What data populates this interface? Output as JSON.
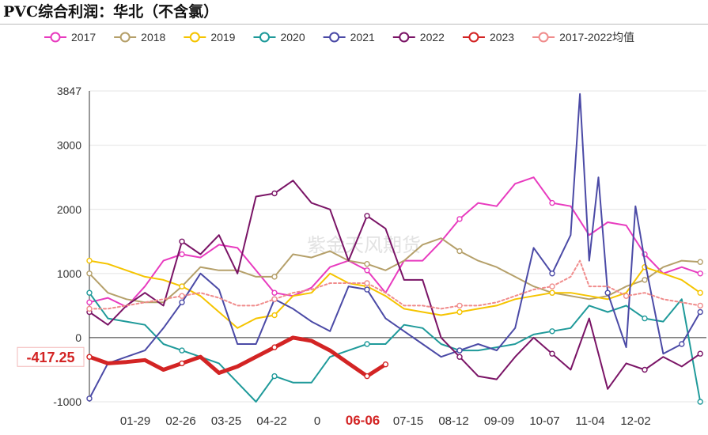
{
  "title": "PVC综合利润：华北（不含氯）",
  "watermark": "紫金天风期货",
  "chart_data": {
    "type": "line",
    "title": "PVC综合利润：华北（不含氯）",
    "x_ticks": [
      "01-29",
      "02-26",
      "03-25",
      "04-22",
      "0",
      "06-06",
      "07-15",
      "08-12",
      "09-09",
      "10-07",
      "11-04",
      "12-02"
    ],
    "x_highlight_tick": "06-06",
    "y_ticks": [
      -1000,
      0,
      1000,
      2000,
      3000,
      3847
    ],
    "ylim": [
      -1000,
      3847
    ],
    "x_range": [
      0,
      100
    ],
    "end_label": "-417.25",
    "series": [
      {
        "name": "2017",
        "color": "#e83bbf",
        "x": [
          0,
          3,
          6,
          9,
          12,
          15,
          18,
          21,
          24,
          27,
          30,
          33,
          36,
          39,
          42,
          45,
          48,
          51,
          54,
          57,
          60,
          63,
          66,
          69,
          72,
          75,
          78,
          81,
          84,
          87,
          90,
          93,
          96,
          99
        ],
        "y": [
          550,
          620,
          480,
          800,
          1200,
          1300,
          1250,
          1450,
          1400,
          1050,
          700,
          650,
          780,
          1100,
          1200,
          1050,
          700,
          1200,
          1200,
          1500,
          1850,
          2100,
          2050,
          2400,
          2500,
          2100,
          2050,
          1600,
          1800,
          1750,
          1300,
          1000,
          1100,
          1000
        ]
      },
      {
        "name": "2018",
        "color": "#b5a06a",
        "x": [
          0,
          3,
          6,
          9,
          12,
          15,
          18,
          21,
          24,
          27,
          30,
          33,
          36,
          39,
          42,
          45,
          48,
          51,
          54,
          57,
          60,
          63,
          66,
          69,
          72,
          75,
          78,
          81,
          84,
          87,
          90,
          93,
          96,
          99
        ],
        "y": [
          1000,
          700,
          600,
          550,
          550,
          800,
          1100,
          1050,
          1050,
          950,
          950,
          1300,
          1250,
          1350,
          1200,
          1150,
          1050,
          1200,
          1450,
          1550,
          1350,
          1200,
          1100,
          950,
          800,
          700,
          650,
          600,
          650,
          800,
          900,
          1100,
          1200,
          1180
        ]
      },
      {
        "name": "2019",
        "color": "#f5c400",
        "x": [
          0,
          3,
          6,
          9,
          12,
          15,
          18,
          21,
          24,
          27,
          30,
          33,
          36,
          39,
          42,
          45,
          48,
          51,
          54,
          57,
          60,
          63,
          66,
          69,
          72,
          75,
          78,
          81,
          84,
          87,
          90,
          93,
          96,
          99
        ],
        "y": [
          1200,
          1150,
          1050,
          950,
          900,
          800,
          650,
          400,
          150,
          300,
          350,
          650,
          700,
          1000,
          850,
          800,
          650,
          450,
          400,
          350,
          400,
          450,
          500,
          600,
          650,
          700,
          700,
          650,
          600,
          700,
          1100,
          1000,
          900,
          700
        ]
      },
      {
        "name": "2020",
        "color": "#1f9a9a",
        "x": [
          0,
          3,
          6,
          9,
          12,
          15,
          18,
          21,
          24,
          27,
          30,
          33,
          36,
          39,
          42,
          45,
          48,
          51,
          54,
          57,
          60,
          63,
          66,
          69,
          72,
          75,
          78,
          81,
          84,
          87,
          90,
          93,
          96,
          99
        ],
        "y": [
          700,
          300,
          250,
          200,
          -100,
          -200,
          -300,
          -400,
          -700,
          -1000,
          -600,
          -700,
          -700,
          -300,
          -200,
          -100,
          -100,
          200,
          150,
          -100,
          -200,
          -200,
          -150,
          -100,
          50,
          100,
          150,
          500,
          400,
          500,
          300,
          250,
          600,
          -1000
        ]
      },
      {
        "name": "2021",
        "color": "#4b4aa6",
        "x": [
          0,
          3,
          6,
          9,
          12,
          15,
          18,
          21,
          24,
          27,
          30,
          33,
          36,
          39,
          42,
          45,
          48,
          51,
          54,
          57,
          60,
          63,
          66,
          69,
          72,
          75,
          78,
          79.5,
          81,
          82.5,
          84,
          87,
          88.5,
          90,
          93,
          96,
          99
        ],
        "y": [
          -950,
          -400,
          -300,
          -200,
          150,
          550,
          1000,
          750,
          -100,
          -100,
          600,
          450,
          250,
          100,
          800,
          750,
          300,
          100,
          -100,
          -300,
          -200,
          -100,
          -200,
          150,
          1400,
          1000,
          1600,
          3800,
          1200,
          2500,
          700,
          -150,
          2050,
          1200,
          -250,
          -100,
          400
        ]
      },
      {
        "name": "2022",
        "color": "#7a1466",
        "x": [
          0,
          3,
          6,
          9,
          12,
          15,
          18,
          21,
          24,
          27,
          30,
          33,
          36,
          39,
          42,
          45,
          48,
          51,
          54,
          57,
          60,
          63,
          66,
          69,
          72,
          75,
          78,
          81,
          84,
          87,
          90,
          93,
          96,
          99
        ],
        "y": [
          400,
          200,
          500,
          700,
          500,
          1500,
          1300,
          1600,
          1000,
          2200,
          2250,
          2450,
          2100,
          2000,
          1200,
          1900,
          1700,
          900,
          900,
          0,
          -300,
          -600,
          -650,
          -300,
          0,
          -250,
          -500,
          300,
          -800,
          -400,
          -500,
          -300,
          -450,
          -250
        ]
      },
      {
        "name": "2023",
        "color": "#d32424",
        "x": [
          0,
          3,
          6,
          9,
          12,
          15,
          18,
          21,
          24,
          27,
          30,
          33,
          36,
          39,
          42,
          45,
          48
        ],
        "y": [
          -300,
          -400,
          -380,
          -350,
          -500,
          -400,
          -300,
          -550,
          -450,
          -300,
          -150,
          0,
          -50,
          -200,
          -400,
          -600,
          -417
        ]
      },
      {
        "name": "2017-2022均值",
        "color": "#f08c8c",
        "dashed": true,
        "x": [
          0,
          3,
          6,
          9,
          12,
          15,
          18,
          21,
          24,
          27,
          30,
          33,
          36,
          39,
          42,
          45,
          48,
          51,
          54,
          57,
          60,
          63,
          66,
          69,
          72,
          75,
          78,
          79.5,
          81,
          84,
          87,
          90,
          93,
          96,
          99
        ],
        "y": [
          450,
          450,
          500,
          550,
          600,
          650,
          700,
          620,
          500,
          500,
          600,
          700,
          750,
          850,
          850,
          850,
          700,
          500,
          500,
          450,
          500,
          500,
          550,
          650,
          750,
          800,
          950,
          1200,
          800,
          800,
          650,
          700,
          600,
          550,
          500
        ]
      }
    ]
  }
}
